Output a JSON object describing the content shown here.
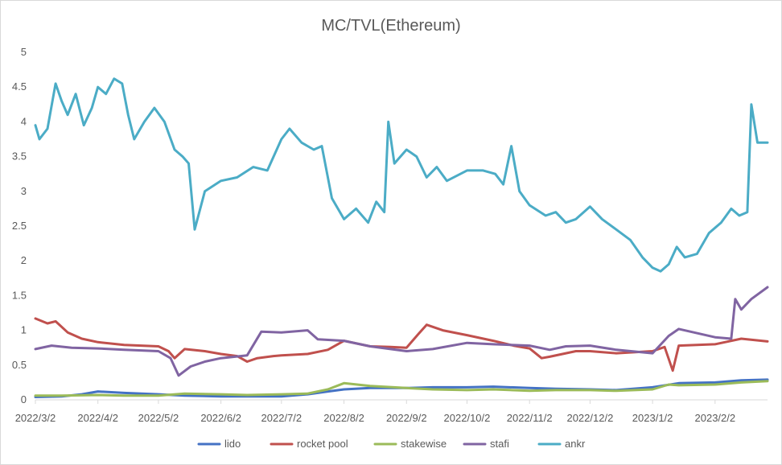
{
  "chart_data": {
    "type": "line",
    "title": "MC/TVL(Ethereum)",
    "xlabel": "",
    "ylabel": "",
    "x_ticks": [
      "2022/3/2",
      "2022/4/2",
      "2022/5/2",
      "2022/6/2",
      "2022/7/2",
      "2022/8/2",
      "2022/9/2",
      "2022/10/2",
      "2022/11/2",
      "2022/12/2",
      "2023/1/2",
      "2023/2/2"
    ],
    "xlim": [
      "2022/3/2",
      "2023/2/28"
    ],
    "ylim": [
      0,
      5
    ],
    "y_ticks": [
      0,
      0.5,
      1,
      1.5,
      2,
      2.5,
      3,
      3.5,
      4,
      4.5,
      5
    ],
    "grid": false,
    "legend_position": "bottom",
    "series": [
      {
        "name": "lido",
        "color": "#4472c4",
        "points": [
          [
            "2022/3/2",
            0.04
          ],
          [
            "2022/3/15",
            0.05
          ],
          [
            "2022/3/25",
            0.08
          ],
          [
            "2022/4/2",
            0.12
          ],
          [
            "2022/4/15",
            0.1
          ],
          [
            "2022/5/2",
            0.08
          ],
          [
            "2022/5/15",
            0.06
          ],
          [
            "2022/6/2",
            0.05
          ],
          [
            "2022/6/15",
            0.05
          ],
          [
            "2022/7/2",
            0.05
          ],
          [
            "2022/7/15",
            0.08
          ],
          [
            "2022/7/25",
            0.12
          ],
          [
            "2022/8/2",
            0.15
          ],
          [
            "2022/8/15",
            0.17
          ],
          [
            "2022/9/2",
            0.17
          ],
          [
            "2022/9/15",
            0.18
          ],
          [
            "2022/10/2",
            0.18
          ],
          [
            "2022/10/15",
            0.19
          ],
          [
            "2022/11/2",
            0.17
          ],
          [
            "2022/11/15",
            0.16
          ],
          [
            "2022/12/2",
            0.15
          ],
          [
            "2022/12/15",
            0.14
          ],
          [
            "2023/1/2",
            0.18
          ],
          [
            "2023/1/15",
            0.24
          ],
          [
            "2023/2/2",
            0.25
          ],
          [
            "2023/2/15",
            0.28
          ],
          [
            "2023/2/28",
            0.29
          ]
        ]
      },
      {
        "name": "rocket pool",
        "color": "#c0504d",
        "points": [
          [
            "2022/3/2",
            1.17
          ],
          [
            "2022/3/8",
            1.1
          ],
          [
            "2022/3/12",
            1.13
          ],
          [
            "2022/3/18",
            0.97
          ],
          [
            "2022/3/25",
            0.88
          ],
          [
            "2022/4/2",
            0.83
          ],
          [
            "2022/4/15",
            0.79
          ],
          [
            "2022/5/2",
            0.77
          ],
          [
            "2022/5/7",
            0.7
          ],
          [
            "2022/5/10",
            0.6
          ],
          [
            "2022/5/15",
            0.73
          ],
          [
            "2022/5/25",
            0.7
          ],
          [
            "2022/6/2",
            0.66
          ],
          [
            "2022/6/10",
            0.63
          ],
          [
            "2022/6/15",
            0.55
          ],
          [
            "2022/6/20",
            0.6
          ],
          [
            "2022/6/28",
            0.63
          ],
          [
            "2022/7/2",
            0.64
          ],
          [
            "2022/7/15",
            0.66
          ],
          [
            "2022/7/25",
            0.72
          ],
          [
            "2022/8/2",
            0.85
          ],
          [
            "2022/8/15",
            0.77
          ],
          [
            "2022/8/25",
            0.76
          ],
          [
            "2022/9/2",
            0.75
          ],
          [
            "2022/9/8",
            0.95
          ],
          [
            "2022/9/12",
            1.08
          ],
          [
            "2022/9/20",
            1.0
          ],
          [
            "2022/10/2",
            0.93
          ],
          [
            "2022/10/15",
            0.85
          ],
          [
            "2022/10/25",
            0.78
          ],
          [
            "2022/11/2",
            0.74
          ],
          [
            "2022/11/8",
            0.6
          ],
          [
            "2022/11/12",
            0.62
          ],
          [
            "2022/11/25",
            0.7
          ],
          [
            "2022/12/2",
            0.7
          ],
          [
            "2022/12/15",
            0.67
          ],
          [
            "2023/1/2",
            0.7
          ],
          [
            "2023/1/8",
            0.76
          ],
          [
            "2023/1/12",
            0.42
          ],
          [
            "2023/1/15",
            0.78
          ],
          [
            "2023/2/2",
            0.8
          ],
          [
            "2023/2/15",
            0.88
          ],
          [
            "2023/2/28",
            0.84
          ]
        ]
      },
      {
        "name": "stakewise",
        "color": "#9bbb59",
        "points": [
          [
            "2022/3/2",
            0.06
          ],
          [
            "2022/3/15",
            0.06
          ],
          [
            "2022/4/2",
            0.07
          ],
          [
            "2022/4/15",
            0.06
          ],
          [
            "2022/5/2",
            0.06
          ],
          [
            "2022/5/15",
            0.09
          ],
          [
            "2022/6/2",
            0.08
          ],
          [
            "2022/6/15",
            0.07
          ],
          [
            "2022/7/2",
            0.08
          ],
          [
            "2022/7/15",
            0.09
          ],
          [
            "2022/7/25",
            0.15
          ],
          [
            "2022/8/2",
            0.24
          ],
          [
            "2022/8/15",
            0.2
          ],
          [
            "2022/9/2",
            0.17
          ],
          [
            "2022/9/15",
            0.15
          ],
          [
            "2022/10/2",
            0.14
          ],
          [
            "2022/10/15",
            0.15
          ],
          [
            "2022/11/2",
            0.13
          ],
          [
            "2022/11/15",
            0.14
          ],
          [
            "2022/12/2",
            0.14
          ],
          [
            "2022/12/15",
            0.13
          ],
          [
            "2023/1/2",
            0.15
          ],
          [
            "2023/1/10",
            0.22
          ],
          [
            "2023/1/15",
            0.21
          ],
          [
            "2023/2/2",
            0.22
          ],
          [
            "2023/2/15",
            0.25
          ],
          [
            "2023/2/28",
            0.27
          ]
        ]
      },
      {
        "name": "stafi",
        "color": "#8064a2",
        "points": [
          [
            "2022/3/2",
            0.73
          ],
          [
            "2022/3/10",
            0.78
          ],
          [
            "2022/3/20",
            0.75
          ],
          [
            "2022/4/2",
            0.74
          ],
          [
            "2022/4/15",
            0.72
          ],
          [
            "2022/5/2",
            0.7
          ],
          [
            "2022/5/8",
            0.6
          ],
          [
            "2022/5/12",
            0.35
          ],
          [
            "2022/5/18",
            0.48
          ],
          [
            "2022/5/25",
            0.55
          ],
          [
            "2022/6/2",
            0.6
          ],
          [
            "2022/6/15",
            0.64
          ],
          [
            "2022/6/22",
            0.98
          ],
          [
            "2022/7/2",
            0.97
          ],
          [
            "2022/7/15",
            1.0
          ],
          [
            "2022/7/20",
            0.87
          ],
          [
            "2022/8/2",
            0.85
          ],
          [
            "2022/8/15",
            0.77
          ],
          [
            "2022/9/2",
            0.7
          ],
          [
            "2022/9/15",
            0.73
          ],
          [
            "2022/10/2",
            0.82
          ],
          [
            "2022/10/15",
            0.8
          ],
          [
            "2022/11/2",
            0.78
          ],
          [
            "2022/11/12",
            0.72
          ],
          [
            "2022/11/20",
            0.77
          ],
          [
            "2022/12/2",
            0.78
          ],
          [
            "2022/12/15",
            0.72
          ],
          [
            "2023/1/2",
            0.67
          ],
          [
            "2023/1/10",
            0.92
          ],
          [
            "2023/1/15",
            1.02
          ],
          [
            "2023/2/2",
            0.9
          ],
          [
            "2023/2/10",
            0.88
          ],
          [
            "2023/2/12",
            1.45
          ],
          [
            "2023/2/15",
            1.3
          ],
          [
            "2023/2/20",
            1.45
          ],
          [
            "2023/2/28",
            1.62
          ]
        ]
      },
      {
        "name": "ankr",
        "color": "#4bacc6",
        "points": [
          [
            "2022/3/2",
            3.95
          ],
          [
            "2022/3/4",
            3.75
          ],
          [
            "2022/3/8",
            3.9
          ],
          [
            "2022/3/12",
            4.55
          ],
          [
            "2022/3/15",
            4.3
          ],
          [
            "2022/3/18",
            4.1
          ],
          [
            "2022/3/22",
            4.4
          ],
          [
            "2022/3/26",
            3.95
          ],
          [
            "2022/3/30",
            4.2
          ],
          [
            "2022/4/2",
            4.5
          ],
          [
            "2022/4/6",
            4.4
          ],
          [
            "2022/4/10",
            4.62
          ],
          [
            "2022/4/14",
            4.55
          ],
          [
            "2022/4/17",
            4.1
          ],
          [
            "2022/4/20",
            3.75
          ],
          [
            "2022/4/25",
            4.0
          ],
          [
            "2022/4/30",
            4.2
          ],
          [
            "2022/5/5",
            4.0
          ],
          [
            "2022/5/10",
            3.6
          ],
          [
            "2022/5/14",
            3.5
          ],
          [
            "2022/5/17",
            3.4
          ],
          [
            "2022/5/20",
            2.45
          ],
          [
            "2022/5/25",
            3.0
          ],
          [
            "2022/6/2",
            3.15
          ],
          [
            "2022/6/10",
            3.2
          ],
          [
            "2022/6/18",
            3.35
          ],
          [
            "2022/6/25",
            3.3
          ],
          [
            "2022/7/2",
            3.75
          ],
          [
            "2022/7/6",
            3.9
          ],
          [
            "2022/7/12",
            3.7
          ],
          [
            "2022/7/18",
            3.6
          ],
          [
            "2022/7/22",
            3.65
          ],
          [
            "2022/7/27",
            2.9
          ],
          [
            "2022/8/2",
            2.6
          ],
          [
            "2022/8/8",
            2.75
          ],
          [
            "2022/8/14",
            2.55
          ],
          [
            "2022/8/18",
            2.85
          ],
          [
            "2022/8/22",
            2.7
          ],
          [
            "2022/8/24",
            4.0
          ],
          [
            "2022/8/27",
            3.4
          ],
          [
            "2022/9/2",
            3.6
          ],
          [
            "2022/9/7",
            3.5
          ],
          [
            "2022/9/12",
            3.2
          ],
          [
            "2022/9/17",
            3.35
          ],
          [
            "2022/9/22",
            3.15
          ],
          [
            "2022/10/2",
            3.3
          ],
          [
            "2022/10/10",
            3.3
          ],
          [
            "2022/10/16",
            3.25
          ],
          [
            "2022/10/20",
            3.1
          ],
          [
            "2022/10/24",
            3.65
          ],
          [
            "2022/10/28",
            3.0
          ],
          [
            "2022/11/2",
            2.8
          ],
          [
            "2022/11/10",
            2.65
          ],
          [
            "2022/11/15",
            2.7
          ],
          [
            "2022/11/20",
            2.55
          ],
          [
            "2022/11/25",
            2.6
          ],
          [
            "2022/12/2",
            2.78
          ],
          [
            "2022/12/8",
            2.6
          ],
          [
            "2022/12/15",
            2.45
          ],
          [
            "2022/12/22",
            2.3
          ],
          [
            "2022/12/28",
            2.05
          ],
          [
            "2023/1/2",
            1.9
          ],
          [
            "2023/1/6",
            1.85
          ],
          [
            "2023/1/10",
            1.95
          ],
          [
            "2023/1/14",
            2.2
          ],
          [
            "2023/1/18",
            2.05
          ],
          [
            "2023/1/24",
            2.1
          ],
          [
            "2023/1/30",
            2.4
          ],
          [
            "2023/2/5",
            2.55
          ],
          [
            "2023/2/10",
            2.75
          ],
          [
            "2023/2/14",
            2.65
          ],
          [
            "2023/2/18",
            2.7
          ],
          [
            "2023/2/20",
            4.25
          ],
          [
            "2023/2/23",
            3.7
          ],
          [
            "2023/2/28",
            3.7
          ]
        ]
      }
    ]
  }
}
